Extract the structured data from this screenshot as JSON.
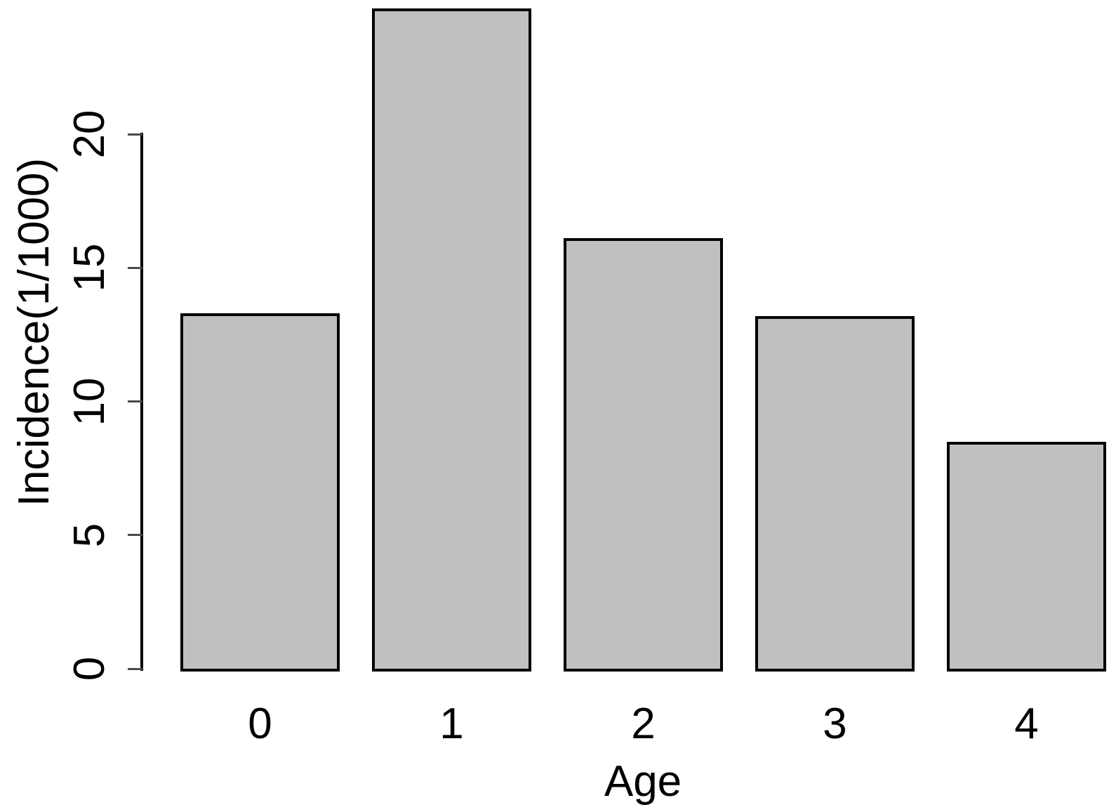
{
  "chart_data": {
    "type": "bar",
    "categories": [
      "0",
      "1",
      "2",
      "3",
      "4"
    ],
    "values": [
      13.3,
      24.7,
      16.1,
      13.2,
      8.5
    ],
    "title": "",
    "xlabel": "Age",
    "ylabel": "Incidence(1/1000)",
    "ylim": [
      0,
      25
    ],
    "yticks": [
      0,
      5,
      10,
      15,
      20
    ],
    "grid": false,
    "legend": false,
    "colors": {
      "bar_fill": "#c0c0c0",
      "bar_border": "#000000",
      "axis": "#000000",
      "tick": "#4a4a4a",
      "text": "#000000",
      "background": "#ffffff"
    }
  }
}
